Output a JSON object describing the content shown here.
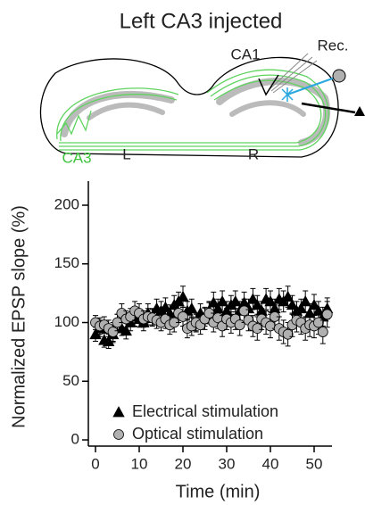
{
  "chart_data": {
    "type": "scatter",
    "title": "Left CA3 injected",
    "annotations": [
      "CA1",
      "Rec.",
      "CA3",
      "L",
      "R"
    ],
    "x_label": "Time (min)",
    "y_label": "Normalized EPSP slope (%)",
    "x": [
      0,
      1,
      2,
      3,
      4,
      5,
      6,
      7,
      8,
      9,
      10,
      11,
      12,
      13,
      14,
      15,
      16,
      17,
      18,
      19,
      20,
      21,
      22,
      23,
      24,
      25,
      26,
      27,
      28,
      29,
      30,
      31,
      32,
      33,
      34,
      35,
      36,
      37,
      38,
      39,
      40,
      41,
      42,
      43,
      44,
      45,
      46,
      47,
      48,
      49,
      50,
      51,
      52,
      53
    ],
    "series": [
      {
        "name": "Electrical stimulation",
        "color": "#000000",
        "marker": "triangle",
        "values": [
          90,
          95,
          85,
          84,
          90,
          100,
          95,
          93,
          100,
          105,
          103,
          100,
          108,
          105,
          112,
          110,
          113,
          108,
          115,
          118,
          122,
          110,
          112,
          100,
          108,
          105,
          110,
          117,
          112,
          118,
          110,
          115,
          118,
          110,
          117,
          112,
          120,
          115,
          110,
          120,
          118,
          112,
          120,
          118,
          122,
          115,
          110,
          112,
          118,
          108,
          115,
          110,
          105,
          112
        ],
        "errors": [
          6,
          7,
          6,
          6,
          7,
          7,
          6,
          7,
          7,
          8,
          7,
          7,
          8,
          7,
          8,
          8,
          8,
          7,
          8,
          8,
          9,
          8,
          8,
          7,
          8,
          8,
          8,
          9,
          8,
          9,
          8,
          8,
          9,
          8,
          9,
          8,
          9,
          8,
          8,
          9,
          9,
          8,
          9,
          9,
          9,
          8,
          8,
          8,
          9,
          8,
          9,
          8,
          8,
          9
        ]
      },
      {
        "name": "Optical stimulation",
        "color": "#b0b0b0",
        "marker": "circle",
        "values": [
          100,
          97,
          98,
          95,
          92,
          100,
          108,
          103,
          105,
          110,
          108,
          103,
          105,
          104,
          102,
          100,
          103,
          98,
          100,
          108,
          105,
          95,
          97,
          100,
          98,
          103,
          108,
          100,
          104,
          97,
          103,
          100,
          103,
          98,
          110,
          102,
          97,
          95,
          103,
          100,
          97,
          105,
          95,
          92,
          90,
          98,
          102,
          100,
          95,
          98,
          97,
          100,
          92,
          107
        ],
        "errors": [
          6,
          7,
          7,
          7,
          8,
          7,
          8,
          7,
          7,
          8,
          8,
          7,
          7,
          7,
          7,
          7,
          8,
          8,
          8,
          8,
          8,
          8,
          8,
          8,
          8,
          9,
          9,
          8,
          9,
          9,
          9,
          9,
          9,
          9,
          10,
          9,
          9,
          10,
          9,
          10,
          10,
          10,
          10,
          10,
          10,
          10,
          10,
          10,
          10,
          10,
          10,
          10,
          10,
          11
        ]
      }
    ],
    "xlim": [
      -1.5,
      54
    ],
    "ylim": [
      -5,
      220
    ],
    "xticks": [
      0,
      10,
      20,
      30,
      40,
      50
    ],
    "yticks": [
      0,
      50,
      100,
      150,
      200
    ],
    "legend": "lower left"
  }
}
